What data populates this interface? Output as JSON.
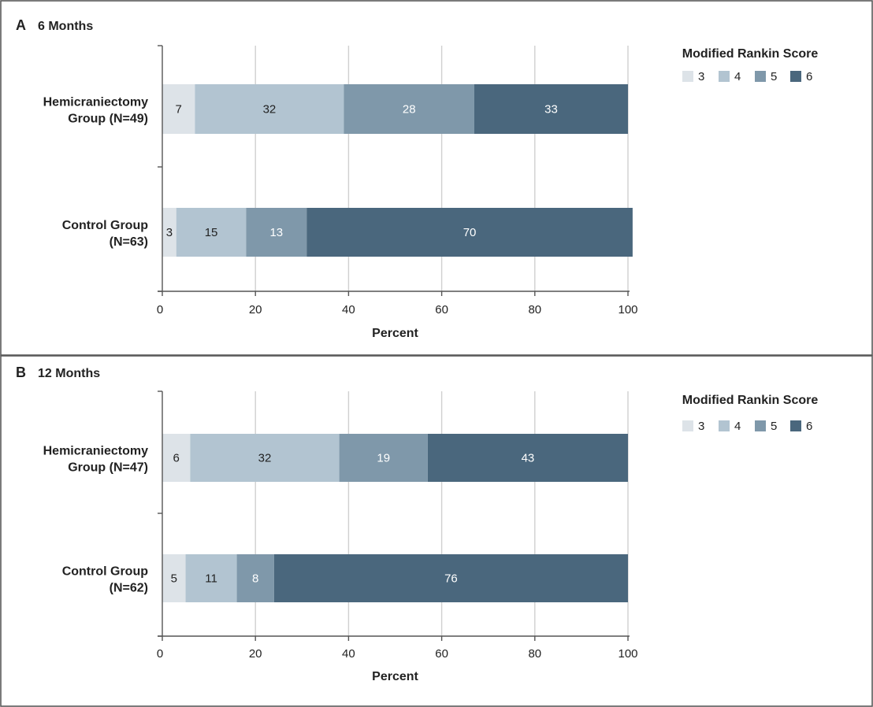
{
  "chart_data": [
    {
      "type": "bar",
      "orientation": "horizontal",
      "stacked": true,
      "panel_letter": "A",
      "title": "6 Months",
      "xlabel": "Percent",
      "xlim": [
        0,
        100
      ],
      "xticks": [
        0,
        20,
        40,
        60,
        80,
        100
      ],
      "grid": true,
      "legend_title": "Modified Rankin Score",
      "legend_position": "top-right",
      "categories": [
        [
          "Hemicraniectomy",
          "Group (N=49)"
        ],
        [
          "Control Group",
          "(N=63)"
        ]
      ],
      "series": [
        {
          "name": "3",
          "color": "#dde3e8",
          "text_color": "#222222",
          "values": [
            7,
            3
          ]
        },
        {
          "name": "4",
          "color": "#b2c4d1",
          "text_color": "#222222",
          "values": [
            32,
            15
          ]
        },
        {
          "name": "5",
          "color": "#7f98aa",
          "text_color": "#ffffff",
          "values": [
            28,
            13
          ]
        },
        {
          "name": "6",
          "color": "#4a677d",
          "text_color": "#ffffff",
          "values": [
            33,
            70
          ]
        }
      ]
    },
    {
      "type": "bar",
      "orientation": "horizontal",
      "stacked": true,
      "panel_letter": "B",
      "title": "12 Months",
      "xlabel": "Percent",
      "xlim": [
        0,
        100
      ],
      "xticks": [
        0,
        20,
        40,
        60,
        80,
        100
      ],
      "grid": true,
      "legend_title": "Modified Rankin Score",
      "legend_position": "top-right",
      "categories": [
        [
          "Hemicraniectomy",
          "Group (N=47)"
        ],
        [
          "Control Group",
          "(N=62)"
        ]
      ],
      "series": [
        {
          "name": "3",
          "color": "#dde3e8",
          "text_color": "#222222",
          "values": [
            6,
            5
          ]
        },
        {
          "name": "4",
          "color": "#b2c4d1",
          "text_color": "#222222",
          "values": [
            32,
            11
          ]
        },
        {
          "name": "5",
          "color": "#7f98aa",
          "text_color": "#ffffff",
          "values": [
            19,
            8
          ]
        },
        {
          "name": "6",
          "color": "#4a677d",
          "text_color": "#ffffff",
          "values": [
            43,
            76
          ]
        }
      ]
    }
  ]
}
